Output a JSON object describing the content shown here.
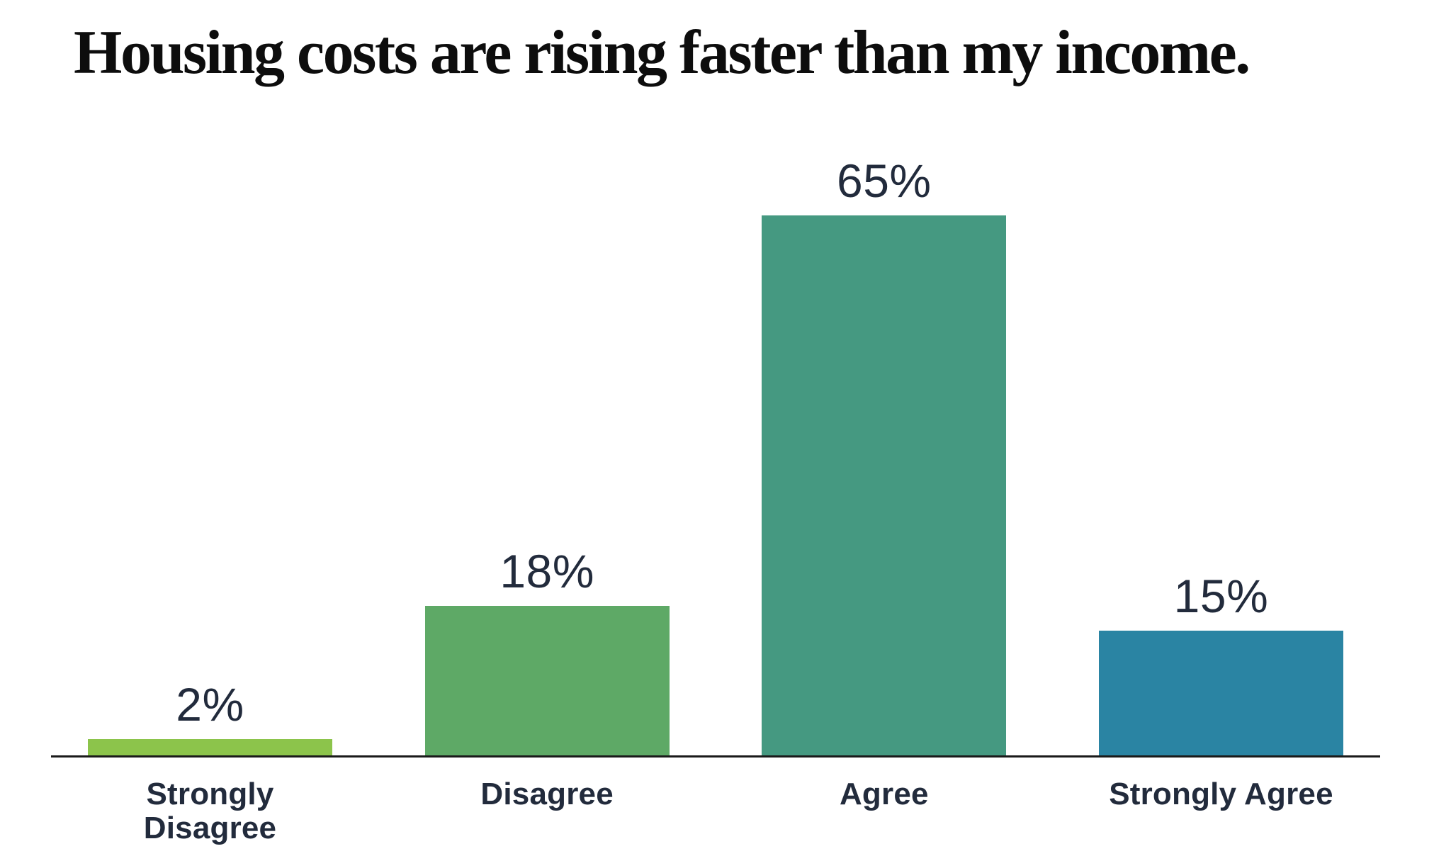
{
  "chart_data": {
    "type": "bar",
    "title": "Housing costs are rising faster than my income.",
    "categories": [
      "Strongly Disagree",
      "Disagree",
      "Agree",
      "Strongly Agree"
    ],
    "values": [
      2,
      18,
      65,
      15
    ],
    "value_labels": [
      "2%",
      "18%",
      "65%",
      "15%"
    ],
    "colors": [
      "#8CC44B",
      "#5EA966",
      "#459981",
      "#2A84A3"
    ],
    "xlabel": "",
    "ylabel": "",
    "ylim": [
      0,
      70
    ],
    "grid": false,
    "legend": false,
    "value_label_position": "above-bar",
    "text_color": "#222B3C",
    "title_color": "#0D0D0D",
    "axis_color": "#1A1A1A",
    "background": "#FFFFFF"
  }
}
